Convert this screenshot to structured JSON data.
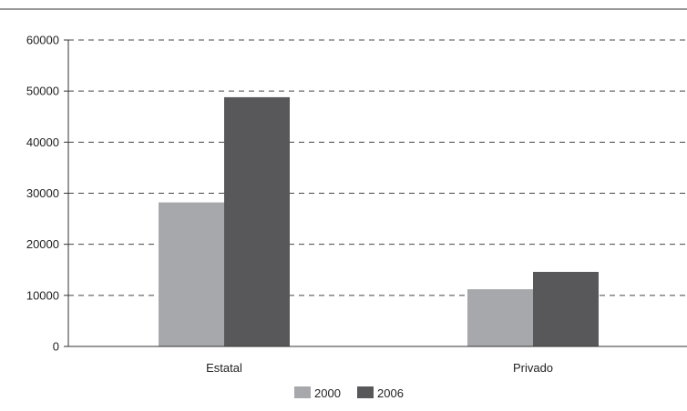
{
  "chart_data": {
    "type": "bar",
    "title": "",
    "xlabel": "",
    "ylabel": "",
    "categories": [
      "Estatal",
      "Privado"
    ],
    "series": [
      {
        "name": "2000",
        "values": [
          28200,
          11200
        ],
        "color": "#a7a8ab"
      },
      {
        "name": "2006",
        "values": [
          48800,
          14600
        ],
        "color": "#58585a"
      }
    ],
    "ylim": [
      0,
      60000
    ],
    "yticks": [
      "0",
      "10000",
      "20000",
      "30000",
      "40000",
      "50000",
      "60000"
    ],
    "grid": "dashed horizontal",
    "legend_position": "bottom-center"
  }
}
